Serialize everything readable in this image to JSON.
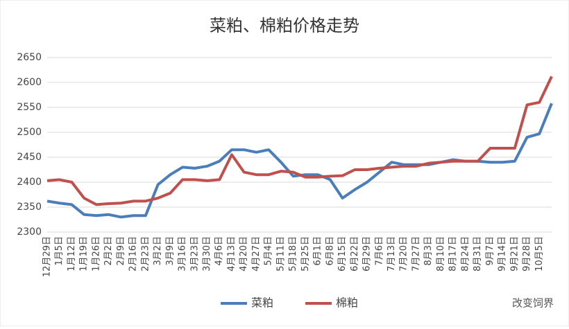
{
  "chart_data": {
    "type": "line",
    "title": "菜粕、棉粕价格走势",
    "categories": [
      "12月29日",
      "1月5日",
      "1月12日",
      "1月19日",
      "1月26日",
      "2月2日",
      "2月9日",
      "2月16日",
      "2月23日",
      "3月2日",
      "3月9日",
      "3月16日",
      "3月23日",
      "3月30日",
      "4月6日",
      "4月13日",
      "4月20日",
      "4月27日",
      "5月4日",
      "5月11日",
      "5月18日",
      "5月25日",
      "6月1日",
      "6月8日",
      "6月15日",
      "6月22日",
      "6月29日",
      "7月6日",
      "7月13日",
      "7月20日",
      "7月27日",
      "8月3日",
      "8月10日",
      "8月17日",
      "8月24日",
      "8月31日",
      "9月7日",
      "9月14日",
      "9月21日",
      "9月28日",
      "10月5日",
      null
    ],
    "series": [
      {
        "name": "菜粕",
        "color": "#4a7ebb",
        "values": [
          2362,
          2358,
          2355,
          2335,
          2333,
          2335,
          2330,
          2333,
          2333,
          2395,
          2415,
          2430,
          2428,
          2432,
          2442,
          2465,
          2465,
          2460,
          2465,
          2440,
          2412,
          2415,
          2415,
          2405,
          2368,
          2385,
          2400,
          2420,
          2440,
          2435,
          2435,
          2435,
          2440,
          2445,
          2442,
          2442,
          2440,
          2440,
          2442,
          2490,
          2497,
          2558
        ]
      },
      {
        "name": "棉粕",
        "color": "#c0504d",
        "values": [
          2403,
          2405,
          2400,
          2368,
          2355,
          2357,
          2358,
          2362,
          2362,
          2368,
          2378,
          2405,
          2405,
          2403,
          2405,
          2455,
          2420,
          2415,
          2415,
          2422,
          2420,
          2410,
          2410,
          2412,
          2413,
          2425,
          2425,
          2428,
          2430,
          2432,
          2432,
          2438,
          2440,
          2442,
          2442,
          2442,
          2468,
          2468,
          2468,
          2555,
          2560,
          2612
        ]
      }
    ],
    "ylim": [
      2300,
      2650
    ],
    "yticks": [
      2300,
      2350,
      2400,
      2450,
      2500,
      2550,
      2600,
      2650
    ],
    "grid": true,
    "annotation": "改变饲界"
  }
}
